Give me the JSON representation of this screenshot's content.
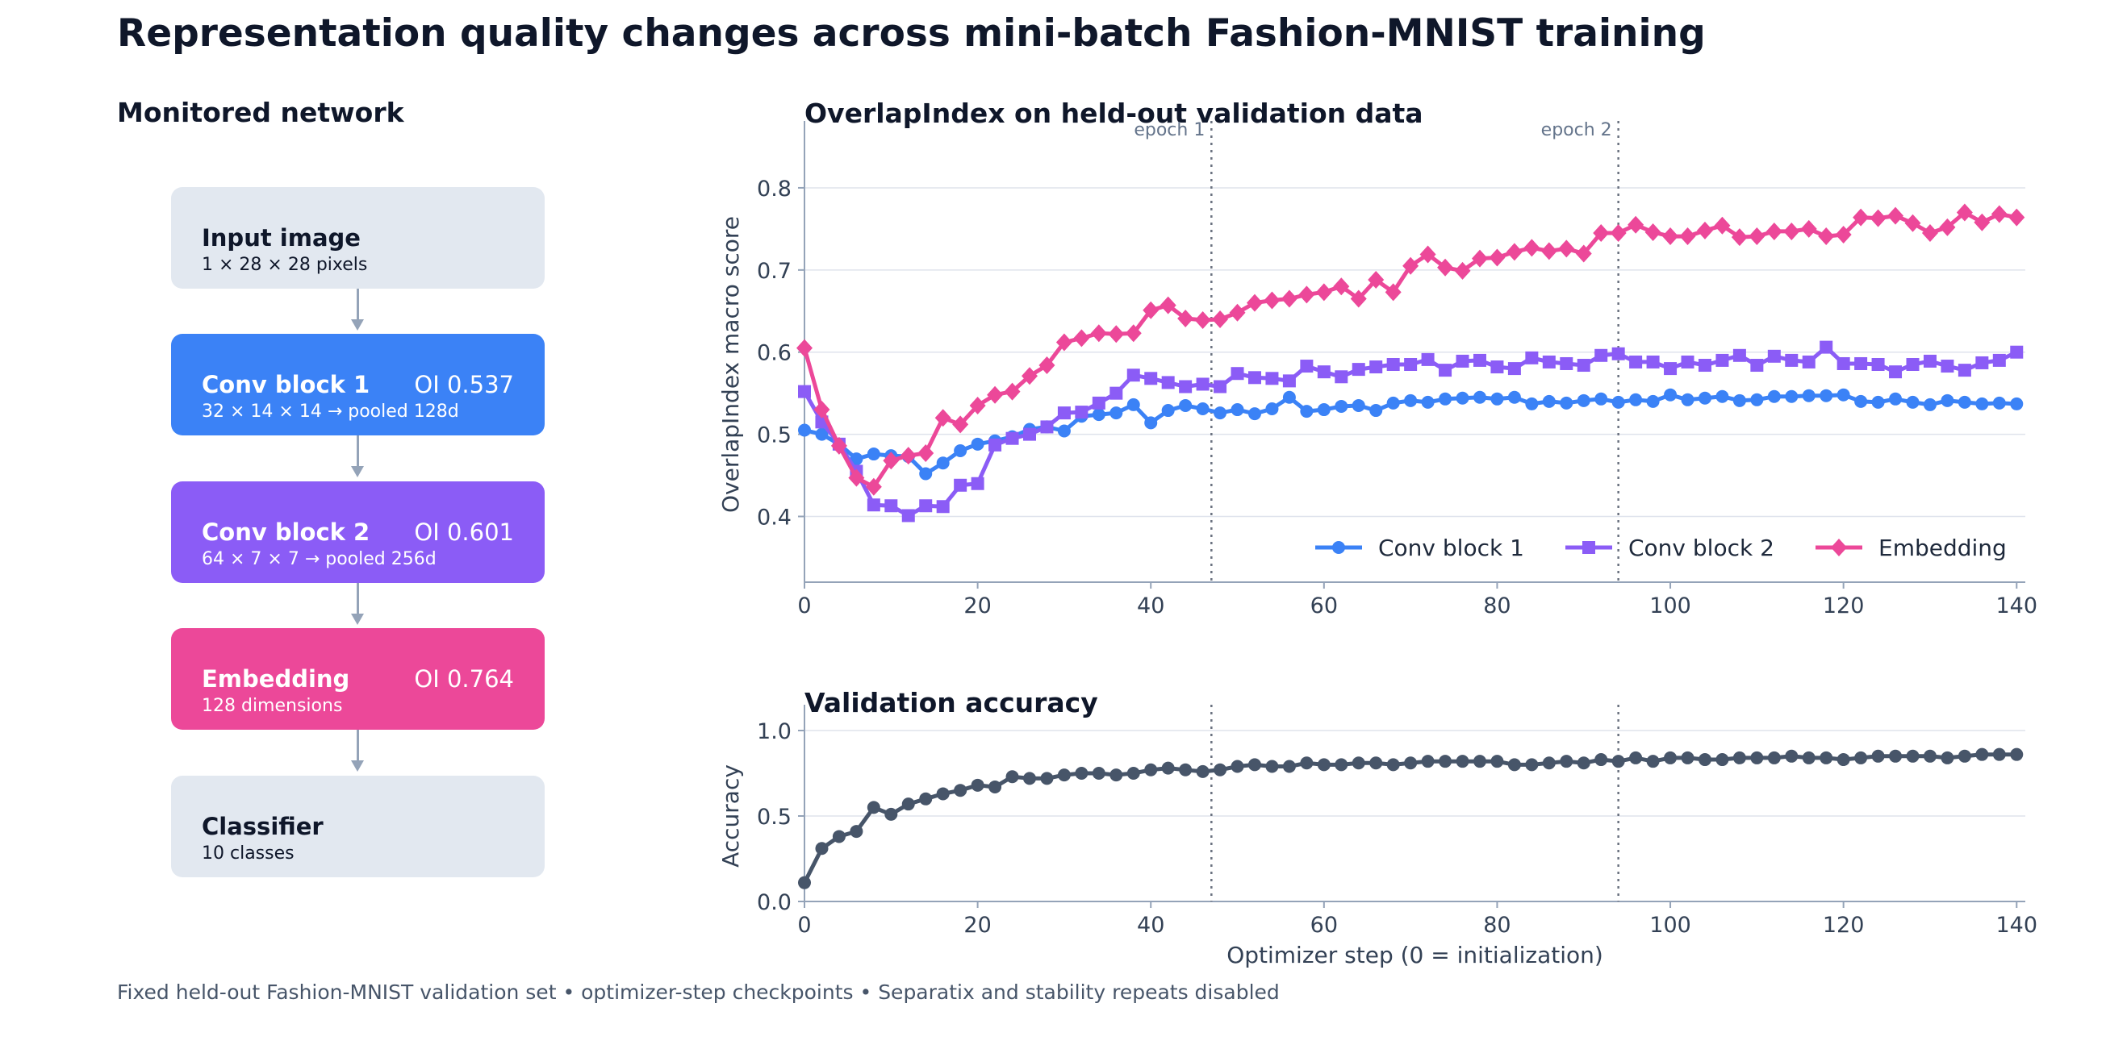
{
  "title": "Representation quality changes across mini-batch Fashion-MNIST training",
  "network": {
    "title": "Monitored network",
    "blocks": [
      {
        "name": "Input image",
        "detail": "1 × 28 × 28 pixels",
        "oi": "",
        "color": "#e2e8f0"
      },
      {
        "name": "Conv block 1",
        "detail": "32 × 14 × 14 → pooled 128d",
        "oi": "OI 0.537",
        "color": "#3b82f6"
      },
      {
        "name": "Conv block 2",
        "detail": "64 × 7 × 7 → pooled 256d",
        "oi": "OI 0.601",
        "color": "#8b5cf6"
      },
      {
        "name": "Embedding",
        "detail": "128 dimensions",
        "oi": "OI 0.764",
        "color": "#ec4899"
      },
      {
        "name": "Classifier",
        "detail": "10 classes",
        "oi": "",
        "color": "#e2e8f0"
      }
    ]
  },
  "footer": "Fixed held-out Fashion-MNIST validation set  •  optimizer-step checkpoints  •  Separatix and stability repeats disabled",
  "chart_data": [
    {
      "type": "line",
      "title": "OverlapIndex on held-out validation data",
      "xlabel": "",
      "ylabel": "OverlapIndex macro score",
      "xlim": [
        0,
        141
      ],
      "ylim": [
        0.32,
        0.85
      ],
      "xticks": [
        0,
        20,
        40,
        60,
        80,
        100,
        120,
        140
      ],
      "yticks": [
        0.4,
        0.5,
        0.6,
        0.7,
        0.8
      ],
      "grid": "horizontal",
      "legend": "bottom-right",
      "annotations": [
        {
          "x": 47,
          "label": "epoch 1"
        },
        {
          "x": 94,
          "label": "epoch 2"
        }
      ],
      "x": [
        0,
        2,
        4,
        6,
        8,
        10,
        12,
        14,
        16,
        18,
        20,
        22,
        24,
        26,
        28,
        30,
        32,
        34,
        36,
        38,
        40,
        42,
        44,
        46,
        48,
        50,
        52,
        54,
        56,
        58,
        60,
        62,
        64,
        66,
        68,
        70,
        72,
        74,
        76,
        78,
        80,
        82,
        84,
        86,
        88,
        90,
        92,
        94,
        96,
        98,
        100,
        102,
        104,
        106,
        108,
        110,
        112,
        114,
        116,
        118,
        120,
        122,
        124,
        126,
        128,
        130,
        132,
        134,
        136,
        138,
        140
      ],
      "series": [
        {
          "name": "Conv block 1",
          "color": "#3b82f6",
          "marker": "circle",
          "values": [
            0.505,
            0.5,
            0.488,
            0.47,
            0.476,
            0.474,
            0.473,
            0.452,
            0.465,
            0.48,
            0.488,
            0.492,
            0.497,
            0.506,
            0.509,
            0.504,
            0.522,
            0.524,
            0.526,
            0.536,
            0.514,
            0.529,
            0.535,
            0.531,
            0.526,
            0.53,
            0.525,
            0.531,
            0.545,
            0.528,
            0.53,
            0.534,
            0.535,
            0.529,
            0.538,
            0.541,
            0.539,
            0.543,
            0.544,
            0.545,
            0.543,
            0.545,
            0.537,
            0.54,
            0.538,
            0.541,
            0.543,
            0.539,
            0.542,
            0.54,
            0.548,
            0.542,
            0.544,
            0.546,
            0.541,
            0.542,
            0.546,
            0.546,
            0.547,
            0.547,
            0.548,
            0.54,
            0.539,
            0.543,
            0.539,
            0.536,
            0.541,
            0.539,
            0.537,
            0.538,
            0.537
          ]
        },
        {
          "name": "Conv block 2",
          "color": "#8b5cf6",
          "marker": "square",
          "values": [
            0.552,
            0.515,
            0.488,
            0.455,
            0.414,
            0.413,
            0.401,
            0.413,
            0.412,
            0.438,
            0.44,
            0.487,
            0.495,
            0.5,
            0.509,
            0.526,
            0.527,
            0.538,
            0.55,
            0.572,
            0.568,
            0.563,
            0.558,
            0.561,
            0.558,
            0.574,
            0.569,
            0.568,
            0.565,
            0.583,
            0.576,
            0.57,
            0.579,
            0.582,
            0.585,
            0.585,
            0.591,
            0.578,
            0.589,
            0.59,
            0.582,
            0.58,
            0.593,
            0.588,
            0.586,
            0.584,
            0.596,
            0.598,
            0.588,
            0.588,
            0.58,
            0.588,
            0.584,
            0.59,
            0.596,
            0.584,
            0.595,
            0.59,
            0.588,
            0.606,
            0.586,
            0.586,
            0.585,
            0.576,
            0.585,
            0.589,
            0.583,
            0.578,
            0.587,
            0.59,
            0.6
          ]
        },
        {
          "name": "Embedding",
          "color": "#ec4899",
          "marker": "diamond",
          "values": [
            0.605,
            0.53,
            0.486,
            0.447,
            0.436,
            0.468,
            0.474,
            0.477,
            0.52,
            0.512,
            0.535,
            0.548,
            0.552,
            0.571,
            0.584,
            0.612,
            0.617,
            0.623,
            0.622,
            0.623,
            0.651,
            0.657,
            0.641,
            0.639,
            0.64,
            0.648,
            0.66,
            0.663,
            0.665,
            0.67,
            0.673,
            0.68,
            0.665,
            0.688,
            0.673,
            0.705,
            0.719,
            0.703,
            0.699,
            0.714,
            0.715,
            0.722,
            0.727,
            0.723,
            0.726,
            0.72,
            0.745,
            0.745,
            0.755,
            0.746,
            0.741,
            0.741,
            0.748,
            0.754,
            0.74,
            0.741,
            0.747,
            0.747,
            0.75,
            0.741,
            0.743,
            0.764,
            0.763,
            0.766,
            0.757,
            0.745,
            0.752,
            0.77,
            0.758,
            0.768,
            0.764
          ]
        }
      ]
    },
    {
      "type": "line",
      "title": "Validation accuracy",
      "xlabel": "Optimizer step (0 = initialization)",
      "ylabel": "Accuracy",
      "xlim": [
        0,
        141
      ],
      "ylim": [
        0,
        1.0
      ],
      "xticks": [
        0,
        20,
        40,
        60,
        80,
        100,
        120,
        140
      ],
      "yticks": [
        0.0,
        0.5,
        1.0
      ],
      "grid": "horizontal",
      "annotations": [
        {
          "x": 47,
          "label": ""
        },
        {
          "x": 94,
          "label": ""
        }
      ],
      "x": [
        0,
        2,
        4,
        6,
        8,
        10,
        12,
        14,
        16,
        18,
        20,
        22,
        24,
        26,
        28,
        30,
        32,
        34,
        36,
        38,
        40,
        42,
        44,
        46,
        48,
        50,
        52,
        54,
        56,
        58,
        60,
        62,
        64,
        66,
        68,
        70,
        72,
        74,
        76,
        78,
        80,
        82,
        84,
        86,
        88,
        90,
        92,
        94,
        96,
        98,
        100,
        102,
        104,
        106,
        108,
        110,
        112,
        114,
        116,
        118,
        120,
        122,
        124,
        126,
        128,
        130,
        132,
        134,
        136,
        138,
        140
      ],
      "series": [
        {
          "name": "",
          "color": "#475569",
          "marker": "circle",
          "values": [
            0.11,
            0.31,
            0.38,
            0.41,
            0.55,
            0.51,
            0.57,
            0.6,
            0.63,
            0.65,
            0.68,
            0.67,
            0.73,
            0.72,
            0.72,
            0.74,
            0.75,
            0.75,
            0.74,
            0.75,
            0.77,
            0.78,
            0.77,
            0.76,
            0.77,
            0.79,
            0.8,
            0.79,
            0.79,
            0.81,
            0.8,
            0.8,
            0.81,
            0.81,
            0.8,
            0.81,
            0.82,
            0.82,
            0.82,
            0.82,
            0.82,
            0.8,
            0.8,
            0.81,
            0.82,
            0.81,
            0.83,
            0.82,
            0.84,
            0.82,
            0.84,
            0.84,
            0.83,
            0.83,
            0.84,
            0.84,
            0.84,
            0.85,
            0.84,
            0.84,
            0.83,
            0.84,
            0.85,
            0.85,
            0.85,
            0.85,
            0.84,
            0.85,
            0.86,
            0.86,
            0.86
          ]
        }
      ]
    }
  ]
}
